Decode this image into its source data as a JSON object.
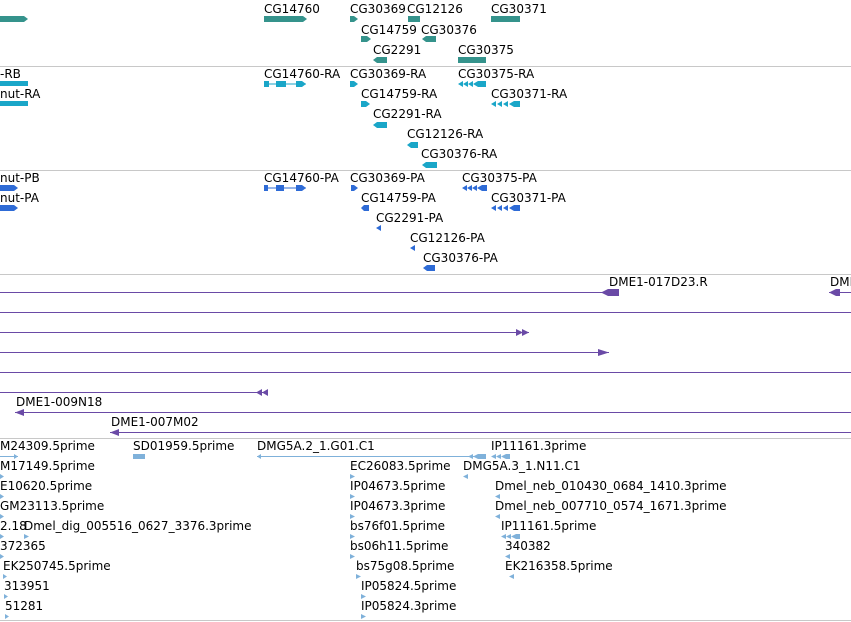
{
  "colors": {
    "gene": "#35938c",
    "transcript_rna": "#1aa6c8",
    "transcript_protein": "#2e6bd6",
    "bac": "#6a4aa6",
    "est": "#7fb1da"
  },
  "gene_track": {
    "labels": [
      "CG14760",
      "CG30369",
      "CG12126",
      "CG30371",
      "CG14759",
      "CG30376",
      "CG2291",
      "CG30375"
    ]
  },
  "rna_track": {
    "labels": [
      "-RB",
      "nut-RA",
      "CG14760-RA",
      "CG30369-RA",
      "CG30375-RA",
      "CG14759-RA",
      "CG30371-RA",
      "CG2291-RA",
      "CG12126-RA",
      "CG30376-RA"
    ]
  },
  "protein_track": {
    "labels": [
      "nut-PB",
      "nut-PA",
      "CG14760-PA",
      "CG30369-PA",
      "CG30375-PA",
      "CG14759-PA",
      "CG30371-PA",
      "CG2291-PA",
      "CG12126-PA",
      "CG30376-PA"
    ]
  },
  "bac_track": {
    "labels": [
      "DME1-017D23.R",
      "DMI",
      "DME1-009N18",
      "DME1-007M02"
    ]
  },
  "est_track": {
    "labels": [
      "M24309.5prime",
      "SD01959.5prime",
      "DMG5A.2_1.G01.C1",
      "IP11161.3prime",
      "M17149.5prime",
      "EC26083.5prime",
      "DMG5A.3_1.N11.C1",
      "E10620.5prime",
      "IP04673.5prime",
      "Dmel_neb_010430_0684_1410.3prime",
      "GM23113.5prime",
      "IP04673.3prime",
      "Dmel_neb_007710_0574_1671.3prime",
      "2.18",
      "Dmel_dig_005516_0627_3376.3prime",
      "bs76f01.5prime",
      "IP11161.5prime",
      "372365",
      "bs06h11.5prime",
      "340382",
      "EK250745.5prime",
      "bs75g08.5prime",
      "EK216358.5prime",
      "313951",
      "IP05824.5prime",
      "51281",
      "IP05824.3prime"
    ]
  }
}
